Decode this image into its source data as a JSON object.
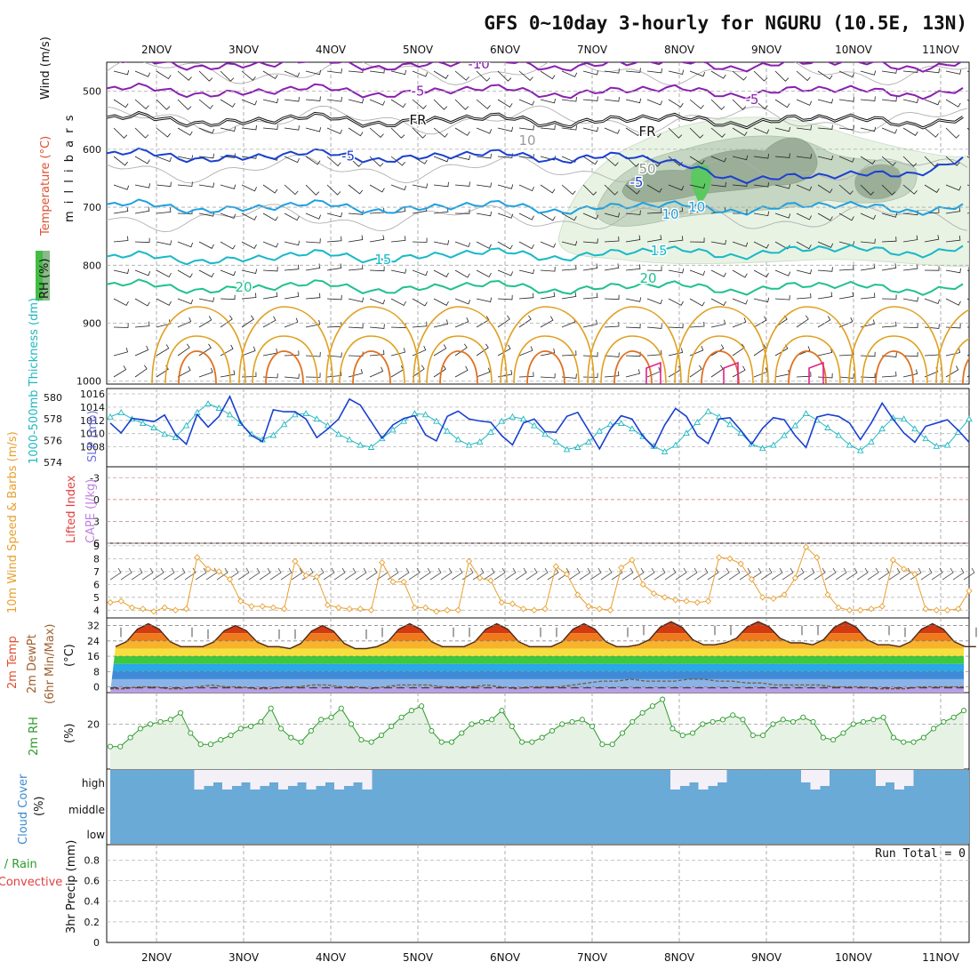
{
  "title": "GFS 0~10day 3-hourly for NGURU (10.5E, 13N)",
  "dates": [
    "2NOV",
    "3NOV",
    "4NOV",
    "5NOV",
    "6NOV",
    "7NOV",
    "8NOV",
    "9NOV",
    "10NOV",
    "11NOV"
  ],
  "colors": {
    "purple": "#8a1fb0",
    "black": "#111111",
    "blue": "#1a40d0",
    "skyblue": "#1ea0e0",
    "teal": "#18b8c8",
    "green": "#20c090",
    "orange": "#e0a020",
    "darkorange": "#e07020",
    "magenta": "#e0208a",
    "slp": "#1a40d0",
    "thick": "#20b8c0",
    "wind10": "#e8a030",
    "cloud": "#6aaad6",
    "rh2m": "#2a9a2a"
  },
  "chart_data": [
    {
      "type": "line",
      "panel": "upper-air",
      "ylabel_parts": [
        "RH (%)",
        "Temperature (°C)",
        "Wind (m/s)"
      ],
      "yaxis_title": "m i l l i b a r s",
      "y_ticks": [
        500,
        600,
        700,
        800,
        900,
        1000
      ],
      "y_range": [
        450,
        1005
      ],
      "y_scale": "pressure (inverted)",
      "x_range_days": [
        0,
        9.8
      ],
      "series": [
        {
          "name": "-10",
          "level_mb": 453,
          "label_at_day": 3.7
        },
        {
          "name": "-5",
          "level_mb": 500,
          "label_at_day": 3.0
        },
        {
          "name": "FR",
          "level_mb": 550,
          "label_at_day": 3.0
        },
        {
          "name": "-5",
          "level_mb": 612,
          "label_at_day": 2.2
        },
        {
          "name": "10",
          "level_mb": 700,
          "label_at_day": 6.2
        },
        {
          "name": "15",
          "level_mb": 790,
          "label_at_day": 2.6
        },
        {
          "name": "20",
          "level_mb": 838,
          "label_at_day": 1.0
        }
      ],
      "contour_labels": [
        "-10",
        "-5",
        "FR",
        "-5",
        "10",
        "15",
        "20",
        "FR",
        "-5",
        "-5",
        "10",
        "15",
        "20",
        "10",
        "10",
        "50"
      ],
      "rh_levels": [
        50,
        70,
        90
      ],
      "grid": true
    },
    {
      "type": "line",
      "panel": "slp-thickness",
      "ylabel_left": "1000-500mb Thickness (dm)",
      "ylabel_right": "SLP (mb)",
      "left_ticks": [
        574,
        576,
        578,
        580
      ],
      "right_ticks": [
        1008,
        1010,
        1012,
        1014,
        1016
      ],
      "series": [
        {
          "name": "SLP (mb)",
          "values": [
            1011.6,
            1010.1,
            1012.3,
            1012.1,
            1011.8,
            1012.8,
            1009.9,
            1008.4,
            1012.9,
            1011.0,
            1012.6,
            1015.6,
            1011.6,
            1009.7,
            1008.8,
            1013.6,
            1013.3,
            1013.3,
            1012.2,
            1009.4,
            1010.7,
            1012.2,
            1015.2,
            1014.3,
            1011.8,
            1009.3,
            1011.3,
            1012.3,
            1012.7,
            1009.8,
            1008.9,
            1012.6,
            1013.4,
            1012.2,
            1011.9,
            1011.7,
            1009.7,
            1008.3,
            1011.6,
            1012.2,
            1010.3,
            1010.2,
            1012.6,
            1013.2,
            1010.5,
            1007.7,
            1010.7,
            1012.7,
            1012.2,
            1009.6,
            1007.9,
            1011.3,
            1013.8,
            1012.6,
            1009.7,
            1008.5,
            1012.2,
            1012.4,
            1010.5,
            1008.4,
            1010.8,
            1012.4,
            1012.1,
            1009.7,
            1007.9,
            1012.5,
            1012.9,
            1012.6,
            1011.6,
            1009.1,
            1011.6,
            1014.6,
            1012.2,
            1010.1,
            1008.7,
            1011.1,
            1011.6,
            1012.1,
            1010.5,
            1008.7
          ]
        },
        {
          "name": "1000-500mb Thickness (dm)",
          "values": [
            578.2,
            578.6,
            578.0,
            577.6,
            577.2,
            576.6,
            576.3,
            577.4,
            578.6,
            579.4,
            579.0,
            578.4,
            577.6,
            576.6,
            576.1,
            576.5,
            577.5,
            578.4,
            578.5,
            578.0,
            577.4,
            576.6,
            576.1,
            575.6,
            575.4,
            576.2,
            577.0,
            577.8,
            578.5,
            578.4,
            577.8,
            576.9,
            576.1,
            575.6,
            575.9,
            576.8,
            577.8,
            578.2,
            578.0,
            577.4,
            576.6,
            575.9,
            575.2,
            575.4,
            575.9,
            576.9,
            577.5,
            577.6,
            577.1,
            576.4,
            575.5,
            575.0,
            575.6,
            576.7,
            577.7,
            578.7,
            578.2,
            577.5,
            576.7,
            575.7,
            575.3,
            575.6,
            576.5,
            577.4,
            578.5,
            577.9,
            577.2,
            576.5,
            575.6,
            575.1,
            575.9,
            577.1,
            578.1,
            578.0,
            577.1,
            576.2,
            575.5,
            575.6,
            576.8,
            578.0
          ]
        }
      ]
    },
    {
      "type": "line",
      "panel": "stability",
      "ylabel_left": "Lifted Index",
      "ylabel_right": "CAPE (J/kg)",
      "left_ticks": [
        -3,
        0,
        3,
        6
      ],
      "ylim": [
        -4.5,
        6
      ],
      "series": [
        {
          "name": "Lifted Index",
          "values": []
        },
        {
          "name": "CAPE (J/kg)",
          "values": []
        }
      ]
    },
    {
      "type": "line",
      "panel": "10m-wind",
      "ylabel": "10m Wind Speed & Barbs (m/s)",
      "left_ticks": [
        4,
        5,
        6,
        7,
        8,
        9
      ],
      "ylim": [
        3.4,
        9.2
      ],
      "series": [
        {
          "name": "10m Wind Speed",
          "values": [
            4.6,
            4.7,
            4.2,
            4.1,
            3.9,
            4.2,
            4.0,
            4.1,
            8.1,
            7.2,
            7.0,
            6.4,
            4.7,
            4.3,
            4.3,
            4.2,
            4.1,
            7.8,
            6.7,
            6.6,
            4.4,
            4.2,
            4.1,
            4.1,
            4.0,
            7.7,
            6.2,
            6.2,
            4.2,
            4.2,
            3.9,
            4.0,
            4.0,
            7.8,
            6.5,
            6.3,
            4.6,
            4.5,
            4.1,
            4.0,
            4.1,
            7.4,
            6.8,
            5.2,
            4.3,
            4.1,
            4.0,
            7.3,
            7.9,
            6.0,
            5.3,
            5.0,
            4.8,
            4.7,
            4.6,
            4.7,
            8.1,
            8.0,
            7.6,
            6.4,
            5.0,
            4.9,
            5.2,
            6.5,
            8.9,
            8.1,
            5.2,
            4.2,
            4.0,
            4.0,
            4.1,
            4.3,
            7.9,
            7.2,
            6.8,
            4.1,
            4.0,
            4.0,
            4.1,
            5.5
          ]
        }
      ]
    },
    {
      "type": "area",
      "panel": "2m-temp",
      "ylabel": "2m Temp 2m DewPt (6hr Min/Max) (°C)",
      "left_ticks": [
        0,
        8,
        16,
        24,
        32
      ],
      "ylim": [
        -3,
        36
      ],
      "series": [
        {
          "name": "2m Temp",
          "daily_max": [
            33,
            32,
            32,
            33,
            33,
            33,
            34,
            34,
            34,
            33
          ],
          "daily_min": [
            21,
            21,
            20,
            21,
            21,
            21,
            22,
            23,
            22,
            21
          ]
        },
        {
          "name": "2m DewPt",
          "values": [
            -1,
            -1,
            0,
            0,
            -1,
            -1,
            0,
            1,
            0,
            0,
            -1,
            -1,
            0,
            0,
            1,
            1,
            0,
            0,
            -1,
            0,
            1,
            1,
            1,
            0,
            0,
            0,
            1,
            0,
            -1,
            0,
            0,
            0,
            1,
            2,
            3,
            3,
            4,
            3,
            3,
            3,
            4,
            4,
            3,
            3,
            2,
            2,
            1,
            1,
            1,
            1,
            0,
            0,
            0,
            -1,
            -1,
            -1,
            0,
            0,
            0,
            0
          ]
        }
      ]
    },
    {
      "type": "area",
      "panel": "2m-rh",
      "ylabel": "2m RH (%)",
      "left_ticks": [
        20
      ],
      "ylim": [
        0,
        34
      ],
      "series": [
        {
          "name": "2m RH",
          "values": [
            10,
            10,
            14,
            18,
            20,
            21,
            22,
            25,
            16,
            11,
            11,
            13,
            15,
            18,
            19,
            21,
            27,
            18,
            14,
            12,
            17,
            22,
            23,
            27,
            20,
            13,
            12,
            15,
            19,
            23,
            26,
            28,
            17,
            12,
            12,
            16,
            20,
            21,
            22,
            26,
            19,
            12,
            12,
            14,
            17,
            20,
            21,
            22,
            19,
            11,
            11,
            16,
            21,
            25,
            28,
            31,
            18,
            15,
            16,
            20,
            21,
            22,
            24,
            22,
            15,
            15,
            20,
            22,
            21,
            23,
            21,
            14,
            13,
            16,
            20,
            21,
            22,
            23,
            14,
            12,
            12,
            14,
            18,
            21,
            23,
            26
          ]
        }
      ]
    },
    {
      "type": "bar",
      "panel": "cloud-cover",
      "ylabel": "Cloud Cover (%)",
      "levels": [
        "high",
        "middle",
        "low"
      ],
      "series": [
        {
          "name": "high cloud",
          "values": [
            0,
            0,
            0,
            0,
            0,
            0,
            0,
            0,
            0,
            1,
            1,
            1,
            1,
            1,
            1,
            1,
            1,
            1,
            1,
            1,
            1,
            1,
            1,
            1,
            1,
            1,
            1,
            1,
            0,
            0,
            0,
            0,
            0,
            0,
            0,
            0,
            0,
            0,
            0,
            0,
            0,
            0,
            0,
            0,
            0,
            0,
            0,
            0,
            0,
            0,
            0,
            0,
            0,
            0,
            0,
            0,
            0,
            0,
            0,
            0,
            1,
            1,
            1,
            1,
            1,
            1,
            0,
            0,
            0,
            0,
            0,
            0,
            0,
            0,
            1,
            1,
            1,
            0,
            0,
            0,
            0,
            0,
            1,
            1,
            1,
            1,
            0,
            0,
            0,
            0,
            0,
            0
          ]
        }
      ]
    },
    {
      "type": "bar",
      "panel": "precip",
      "ylabel_left": "Total / Rain Convective",
      "ylabel_right": "3hr Precip (mm)",
      "left_ticks": [
        0,
        0.2,
        0.4,
        0.6,
        0.8
      ],
      "ylim": [
        0,
        0.95
      ],
      "annotation": "Run Total = 0",
      "series": [
        {
          "name": "3hr Precip",
          "values": []
        }
      ]
    }
  ]
}
